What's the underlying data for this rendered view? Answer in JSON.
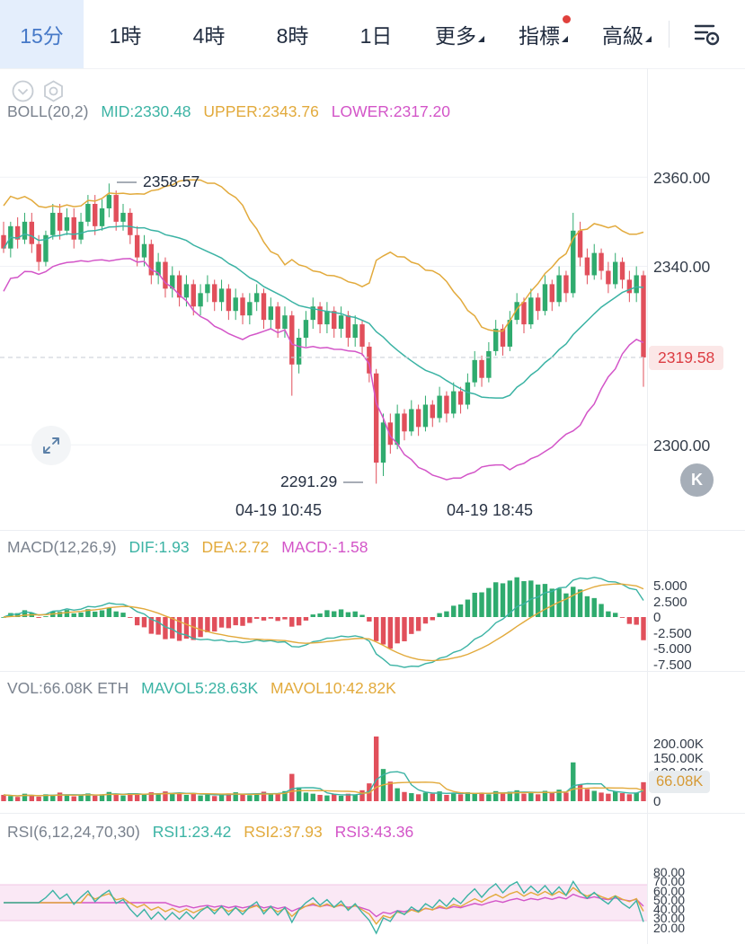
{
  "toolbar": {
    "tabs": [
      {
        "label": "15分",
        "active": true
      },
      {
        "label": "1時"
      },
      {
        "label": "4時"
      },
      {
        "label": "8時"
      },
      {
        "label": "1日"
      }
    ],
    "menus": [
      {
        "label": "更多"
      },
      {
        "label": "指標",
        "has_badge": true
      },
      {
        "label": "高級"
      }
    ]
  },
  "main_chart": {
    "indicator": {
      "name": "BOLL(20,2)",
      "mid": "MID:2330.48",
      "upper": "UPPER:2343.76",
      "lower": "LOWER:2317.20"
    },
    "high_label": "2358.57",
    "low_label": "2291.29",
    "price_badge": "2319.58",
    "y_axis": [
      "2360.00",
      "2340.00",
      "2300.00"
    ],
    "x_axis": [
      "04-19 10:45",
      "04-19 18:45"
    ],
    "watermark": "K"
  },
  "macd": {
    "name": "MACD(12,26,9)",
    "dif": "DIF:1.93",
    "dea": "DEA:2.72",
    "macd": "MACD:-1.58",
    "y_axis": [
      "5.000",
      "2.500",
      "0",
      "-2.500",
      "-5.000",
      "-7.500"
    ]
  },
  "vol": {
    "name": "VOL:66.08K ETH",
    "mavol5": "MAVOL5:28.63K",
    "mavol10": "MAVOL10:42.82K",
    "y_axis": [
      "200.00K",
      "150.00K",
      "100.00K",
      "0"
    ],
    "current_badge": "66.08K"
  },
  "rsi": {
    "name": "RSI(6,12,24,70,30)",
    "rsi1": "RSI1:23.42",
    "rsi2": "RSI2:37.93",
    "rsi3": "RSI3:43.36",
    "y_axis": [
      "80.00",
      "70.00",
      "60.00",
      "50.00",
      "40.00",
      "30.00",
      "20.00"
    ]
  },
  "colors": {
    "up": "#2fab6e",
    "down": "#e14f5b",
    "teal": "#3bb3a4",
    "yellow": "#e2aa3c",
    "magenta": "#d355c8",
    "grid": "#f0f2f6",
    "dashed": "#cdd2d9",
    "rsi_band": "#f7d9ee"
  },
  "chart_data": {
    "type": "candlestick",
    "last_price": 2319.58,
    "grid_prices": [
      2360,
      2340,
      2300
    ],
    "y_top": 2384.4,
    "y_scale": 4.967,
    "vol_scale": 0.32,
    "candles": [
      [
        2347,
        2350,
        2343,
        2344
      ],
      [
        2344,
        2350,
        2342,
        2349
      ],
      [
        2349,
        2351,
        2344,
        2346
      ],
      [
        2346,
        2352,
        2345,
        2350
      ],
      [
        2350,
        2352,
        2343,
        2345
      ],
      [
        2345,
        2347,
        2339,
        2341
      ],
      [
        2341,
        2348,
        2340,
        2347
      ],
      [
        2347,
        2354,
        2346,
        2352
      ],
      [
        2352,
        2354,
        2346,
        2348
      ],
      [
        2348,
        2353,
        2347,
        2351
      ],
      [
        2351,
        2353,
        2344,
        2346
      ],
      [
        2346,
        2352,
        2345,
        2350
      ],
      [
        2350,
        2356,
        2349,
        2354
      ],
      [
        2354,
        2356,
        2347,
        2349
      ],
      [
        2349,
        2355,
        2348,
        2353
      ],
      [
        2353,
        2358.57,
        2351,
        2356
      ],
      [
        2356,
        2357,
        2348,
        2350
      ],
      [
        2350,
        2354,
        2348,
        2352
      ],
      [
        2352,
        2353,
        2345,
        2347
      ],
      [
        2347,
        2349,
        2340,
        2342
      ],
      [
        2342,
        2347,
        2340,
        2345
      ],
      [
        2345,
        2346,
        2336,
        2338
      ],
      [
        2338,
        2343,
        2336,
        2341
      ],
      [
        2341,
        2342,
        2333,
        2335
      ],
      [
        2335,
        2340,
        2333,
        2338
      ],
      [
        2338,
        2339,
        2331,
        2333
      ],
      [
        2333,
        2338,
        2331,
        2336
      ],
      [
        2336,
        2337,
        2329,
        2331
      ],
      [
        2331,
        2336,
        2329,
        2334
      ],
      [
        2334,
        2338,
        2332,
        2336
      ],
      [
        2336,
        2337,
        2330,
        2332
      ],
      [
        2332,
        2337,
        2330,
        2335
      ],
      [
        2335,
        2336,
        2328,
        2330
      ],
      [
        2330,
        2335,
        2328,
        2333
      ],
      [
        2333,
        2334,
        2327,
        2329
      ],
      [
        2329,
        2334,
        2327,
        2332
      ],
      [
        2332,
        2336,
        2330,
        2334
      ],
      [
        2334,
        2335,
        2326,
        2328
      ],
      [
        2328,
        2333,
        2326,
        2331
      ],
      [
        2331,
        2332,
        2324,
        2326
      ],
      [
        2326,
        2331,
        2324,
        2329
      ],
      [
        2329,
        2330,
        2311,
        2318
      ],
      [
        2318,
        2326,
        2316,
        2324
      ],
      [
        2324,
        2330,
        2322,
        2328
      ],
      [
        2328,
        2333,
        2326,
        2331
      ],
      [
        2331,
        2332,
        2325,
        2327
      ],
      [
        2327,
        2332,
        2325,
        2330
      ],
      [
        2330,
        2331,
        2324,
        2326
      ],
      [
        2326,
        2331,
        2324,
        2329
      ],
      [
        2329,
        2330,
        2322,
        2324
      ],
      [
        2324,
        2329,
        2322,
        2327
      ],
      [
        2327,
        2328,
        2320,
        2322
      ],
      [
        2322,
        2323,
        2314,
        2316
      ],
      [
        2316,
        2317,
        2291.29,
        2296
      ],
      [
        2296,
        2307,
        2293,
        2305
      ],
      [
        2305,
        2307,
        2298,
        2300
      ],
      [
        2300,
        2309,
        2299,
        2307
      ],
      [
        2307,
        2308,
        2301,
        2303
      ],
      [
        2303,
        2310,
        2302,
        2308
      ],
      [
        2308,
        2309,
        2302,
        2304
      ],
      [
        2304,
        2311,
        2303,
        2309
      ],
      [
        2309,
        2310,
        2304,
        2306
      ],
      [
        2306,
        2313,
        2305,
        2311
      ],
      [
        2311,
        2312,
        2305,
        2307
      ],
      [
        2307,
        2314,
        2306,
        2312
      ],
      [
        2312,
        2313,
        2307,
        2309
      ],
      [
        2309,
        2316,
        2308,
        2314
      ],
      [
        2314,
        2321,
        2313,
        2319
      ],
      [
        2319,
        2320,
        2313,
        2315
      ],
      [
        2315,
        2323,
        2314,
        2321
      ],
      [
        2321,
        2328,
        2320,
        2326
      ],
      [
        2326,
        2327,
        2320,
        2322
      ],
      [
        2322,
        2330,
        2321,
        2328
      ],
      [
        2328,
        2334,
        2327,
        2332
      ],
      [
        2332,
        2333,
        2325,
        2327
      ],
      [
        2327,
        2335,
        2326,
        2333
      ],
      [
        2333,
        2334,
        2328,
        2330
      ],
      [
        2330,
        2338,
        2329,
        2336
      ],
      [
        2336,
        2337,
        2330,
        2332
      ],
      [
        2332,
        2340,
        2331,
        2338
      ],
      [
        2338,
        2339,
        2332,
        2334
      ],
      [
        2334,
        2352,
        2333,
        2348
      ],
      [
        2348,
        2350,
        2340,
        2342
      ],
      [
        2342,
        2344,
        2336,
        2338
      ],
      [
        2338,
        2345,
        2337,
        2343
      ],
      [
        2343,
        2344,
        2337,
        2339
      ],
      [
        2339,
        2341,
        2334,
        2336
      ],
      [
        2336,
        2343,
        2335,
        2341
      ],
      [
        2341,
        2342,
        2335,
        2337
      ],
      [
        2337,
        2339,
        2332,
        2334
      ],
      [
        2334,
        2340,
        2332,
        2338
      ],
      [
        2338,
        2339,
        2313,
        2319.58
      ]
    ],
    "volumes": [
      22,
      18,
      15,
      26,
      20,
      16,
      24,
      19,
      30,
      23,
      17,
      21,
      27,
      19,
      24,
      32,
      26,
      20,
      28,
      24,
      22,
      31,
      25,
      34,
      26,
      29,
      22,
      27,
      20,
      24,
      18,
      23,
      27,
      31,
      24,
      21,
      26,
      33,
      25,
      28,
      35,
      95,
      48,
      30,
      26,
      22,
      20,
      24,
      19,
      26,
      22,
      38,
      62,
      225,
      112,
      68,
      45,
      32,
      28,
      24,
      30,
      26,
      34,
      22,
      28,
      24,
      31,
      26,
      30,
      24,
      35,
      28,
      33,
      38,
      26,
      32,
      24,
      36,
      28,
      40,
      30,
      135,
      58,
      42,
      36,
      30,
      26,
      34,
      28,
      24,
      30,
      66.08
    ]
  }
}
